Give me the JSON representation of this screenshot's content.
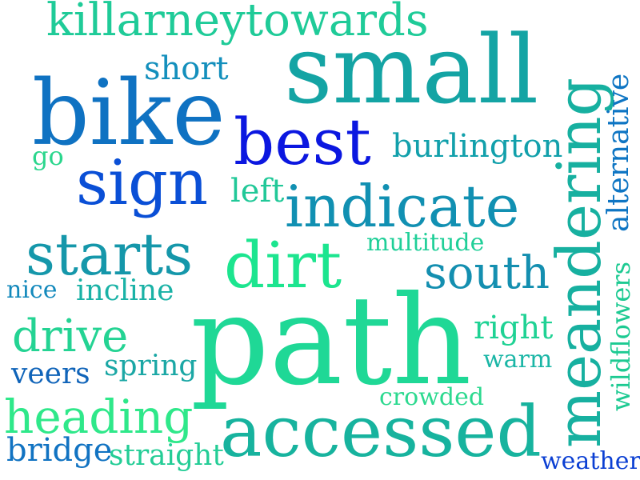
{
  "words": [
    {
      "text": "killarneytowards",
      "color": "#1fcb98"
    },
    {
      "text": "small",
      "color": "#14a4a4"
    },
    {
      "text": "short",
      "color": "#138fbc"
    },
    {
      "text": "bike",
      "color": "#0f72c2"
    },
    {
      "text": "best",
      "color": "#0b17e0"
    },
    {
      "text": "burlington",
      "color": "#12a0ab"
    },
    {
      "text": "go",
      "color": "#2bd68d"
    },
    {
      "text": "sign",
      "color": "#0a4fd6"
    },
    {
      "text": "left",
      "color": "#21c898"
    },
    {
      "text": "indicate",
      "color": "#1190b2"
    },
    {
      "text": "alternative",
      "color": "#0e75c3"
    },
    {
      "text": "meandering",
      "color": "#17b0a0"
    },
    {
      "text": "starts",
      "color": "#1597aa"
    },
    {
      "text": "dirt",
      "color": "#1ce58f"
    },
    {
      "text": "multitude",
      "color": "#20cf98"
    },
    {
      "text": "south",
      "color": "#148fb0"
    },
    {
      "text": "nice",
      "color": "#1389bc"
    },
    {
      "text": "incline",
      "color": "#1ab2a6"
    },
    {
      "text": "wildflowers",
      "color": "#1dca92"
    },
    {
      "text": "path",
      "color": "#1fd896"
    },
    {
      "text": "drive",
      "color": "#24d393"
    },
    {
      "text": "right",
      "color": "#1fd294"
    },
    {
      "text": "warm",
      "color": "#1bb6a6"
    },
    {
      "text": "veers",
      "color": "#1064b9"
    },
    {
      "text": "spring",
      "color": "#1ba7a5"
    },
    {
      "text": "crowded",
      "color": "#2cd98f"
    },
    {
      "text": "heading",
      "color": "#2fe88a"
    },
    {
      "text": "accessed",
      "color": "#17b39e"
    },
    {
      "text": "bridge",
      "color": "#1173c2"
    },
    {
      "text": "straight",
      "color": "#24cd96"
    },
    {
      "text": "weather",
      "color": "#0b3fd3"
    }
  ]
}
